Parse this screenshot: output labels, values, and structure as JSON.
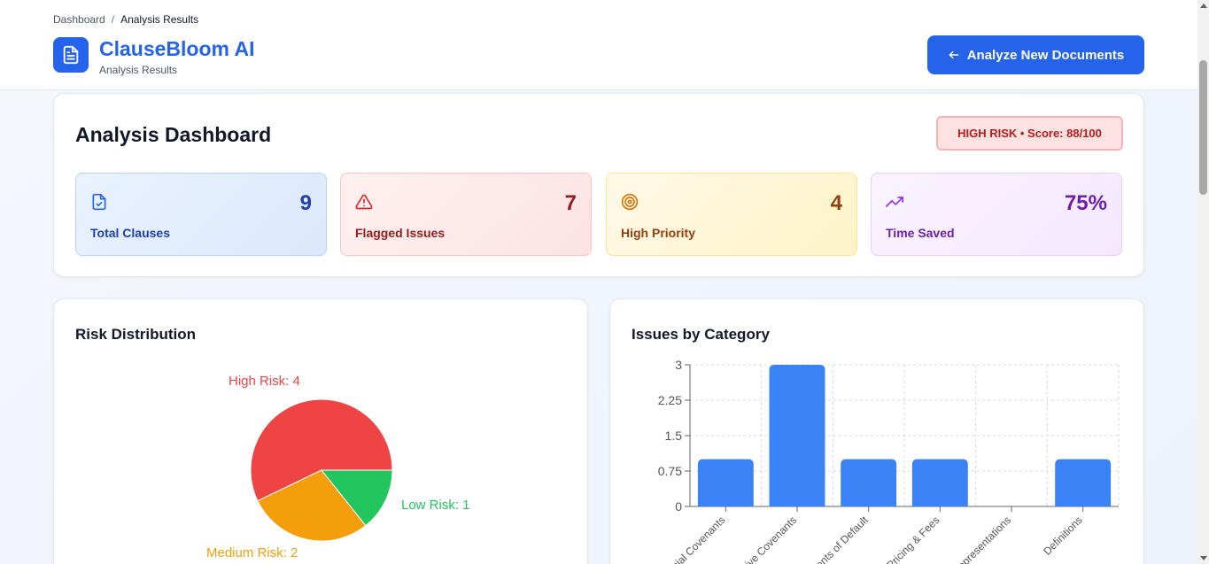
{
  "breadcrumb": {
    "root": "Dashboard",
    "separator": "/",
    "current": "Analysis Results"
  },
  "brand": {
    "name": "ClauseBloom AI",
    "subtitle": "Analysis Results"
  },
  "header": {
    "analyze_button": "Analyze New Documents"
  },
  "dashboard": {
    "title": "Analysis Dashboard",
    "risk_badge": "HIGH RISK • Score: 88/100",
    "stats": [
      {
        "value": "9",
        "label": "Total Clauses",
        "icon": "file-check-icon"
      },
      {
        "value": "7",
        "label": "Flagged Issues",
        "icon": "alert-triangle-icon"
      },
      {
        "value": "4",
        "label": "High Priority",
        "icon": "target-icon"
      },
      {
        "value": "75%",
        "label": "Time Saved",
        "icon": "trending-up-icon"
      }
    ]
  },
  "risk_distribution": {
    "title": "Risk Distribution"
  },
  "issues_by_category": {
    "title": "Issues by Category"
  },
  "colors": {
    "accent": "#2563eb",
    "high": "#ef4444",
    "medium": "#f59e0b",
    "low": "#22c55e",
    "bar": "#3b82f6"
  },
  "chart_data": [
    {
      "type": "pie",
      "title": "Risk Distribution",
      "slices": [
        {
          "label": "High Risk: 4",
          "value": 4,
          "color": "#ef4444"
        },
        {
          "label": "Medium Risk: 2",
          "value": 2,
          "color": "#f59e0b"
        },
        {
          "label": "Low Risk: 1",
          "value": 1,
          "color": "#22c55e"
        }
      ]
    },
    {
      "type": "bar",
      "title": "Issues by Category",
      "categories": [
        "ancial Covenants",
        "ative Covenants",
        "ents of Default",
        "Pricing & Fees",
        "Representations",
        "Definitions"
      ],
      "values": [
        1,
        3,
        1,
        1,
        0,
        1
      ],
      "ylim": [
        0,
        3
      ],
      "yticks": [
        "0",
        "0.75",
        "1.5",
        "2.25",
        "3"
      ],
      "grid": true
    }
  ]
}
